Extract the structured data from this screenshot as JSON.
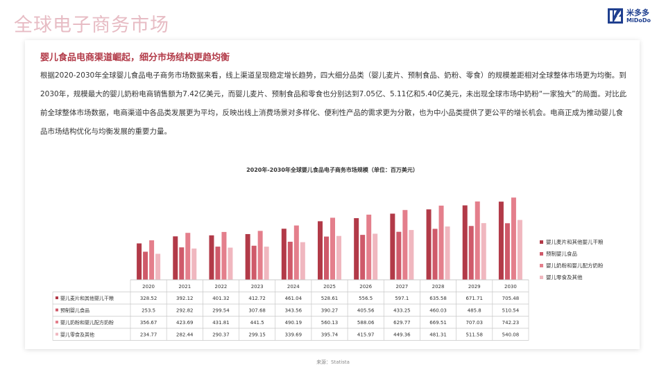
{
  "page": {
    "title": "全球电子商务市场",
    "source": "来源：Statista"
  },
  "logo": {
    "cn": "米多多",
    "en": "MiDoDo"
  },
  "card": {
    "headline": "婴儿食品电商渠道崛起，细分市场结构更趋均衡",
    "body": "根据2020-2030年全球婴儿食品电子商务市场数据来看，线上渠道呈现稳定增长趋势，四大细分品类（婴儿麦片、预制食品、奶粉、零食）的规模差距相对全球整体市场更为均衡。到2030年，规模最大的婴儿奶粉电商销售额为7.42亿美元，而婴儿麦片、预制食品和零食也分别达到7.05亿、5.11亿和5.40亿美元，未出现全球市场中奶粉“一家独大”的局面。对比此前全球整体市场数据，电商渠道中各品类发展更为平均，反映出线上消费场景对多样化、便利性产品的需求更为分散，也为中小品类提供了更公平的增长机会。电商正成为推动婴儿食品市场结构优化与均衡发展的重要力量。"
  },
  "chart_data": {
    "type": "bar",
    "title": "2020年-2030年全球婴儿食品电子商务市场规模（单位：百万美元）",
    "categories": [
      "2020",
      "2021",
      "2022",
      "2023",
      "2024",
      "2025",
      "2026",
      "2027",
      "2028",
      "2029",
      "2030"
    ],
    "series": [
      {
        "name": "婴儿麦片和其他婴儿干粮",
        "color": "#b23a48",
        "values": [
          328.52,
          392.12,
          401.32,
          412.72,
          461.04,
          528.61,
          556.5,
          597.1,
          635.58,
          671.71,
          705.48
        ],
        "labels": [
          "328.52",
          "392.12",
          "401.32",
          "412.72",
          "461.04",
          "528.61",
          "556.5",
          "597.1",
          "635.58",
          "671.71",
          "705.48"
        ]
      },
      {
        "name": "预制婴儿食品",
        "color": "#cf5a6a",
        "values": [
          253.5,
          292.82,
          299.54,
          307.68,
          343.56,
          390.27,
          405.56,
          433.25,
          460.03,
          485.8,
          510.54
        ],
        "labels": [
          "253.5",
          "292.82",
          "299.54",
          "307.68",
          "343.56",
          "390.27",
          "405.56",
          "433.25",
          "460.03",
          "485.8",
          "510.54"
        ]
      },
      {
        "name": "婴儿奶粉和婴儿配方奶粉",
        "color": "#e47f8c",
        "values": [
          356.67,
          423.69,
          431.81,
          441.5,
          490.19,
          560.13,
          588.06,
          629.77,
          669.51,
          707.03,
          742.23
        ],
        "labels": [
          "356.67",
          "423.69",
          "431.81",
          "441.5",
          "490.19",
          "560.13",
          "588.06",
          "629.77",
          "669.51",
          "707.03",
          "742.23"
        ]
      },
      {
        "name": "婴儿零食及其他",
        "color": "#f0b7bf",
        "values": [
          234.77,
          282.44,
          290.37,
          299.15,
          339.69,
          395.74,
          415.97,
          449.36,
          481.31,
          511.58,
          540.08
        ],
        "labels": [
          "234.77",
          "282.44",
          "290.37",
          "299.15",
          "339.69",
          "395.74",
          "415.97",
          "449.36",
          "481.31",
          "511.58",
          "540.08"
        ]
      }
    ],
    "ylim": [
      0,
      800
    ],
    "legend": "right",
    "grid": false,
    "data_table": true
  }
}
